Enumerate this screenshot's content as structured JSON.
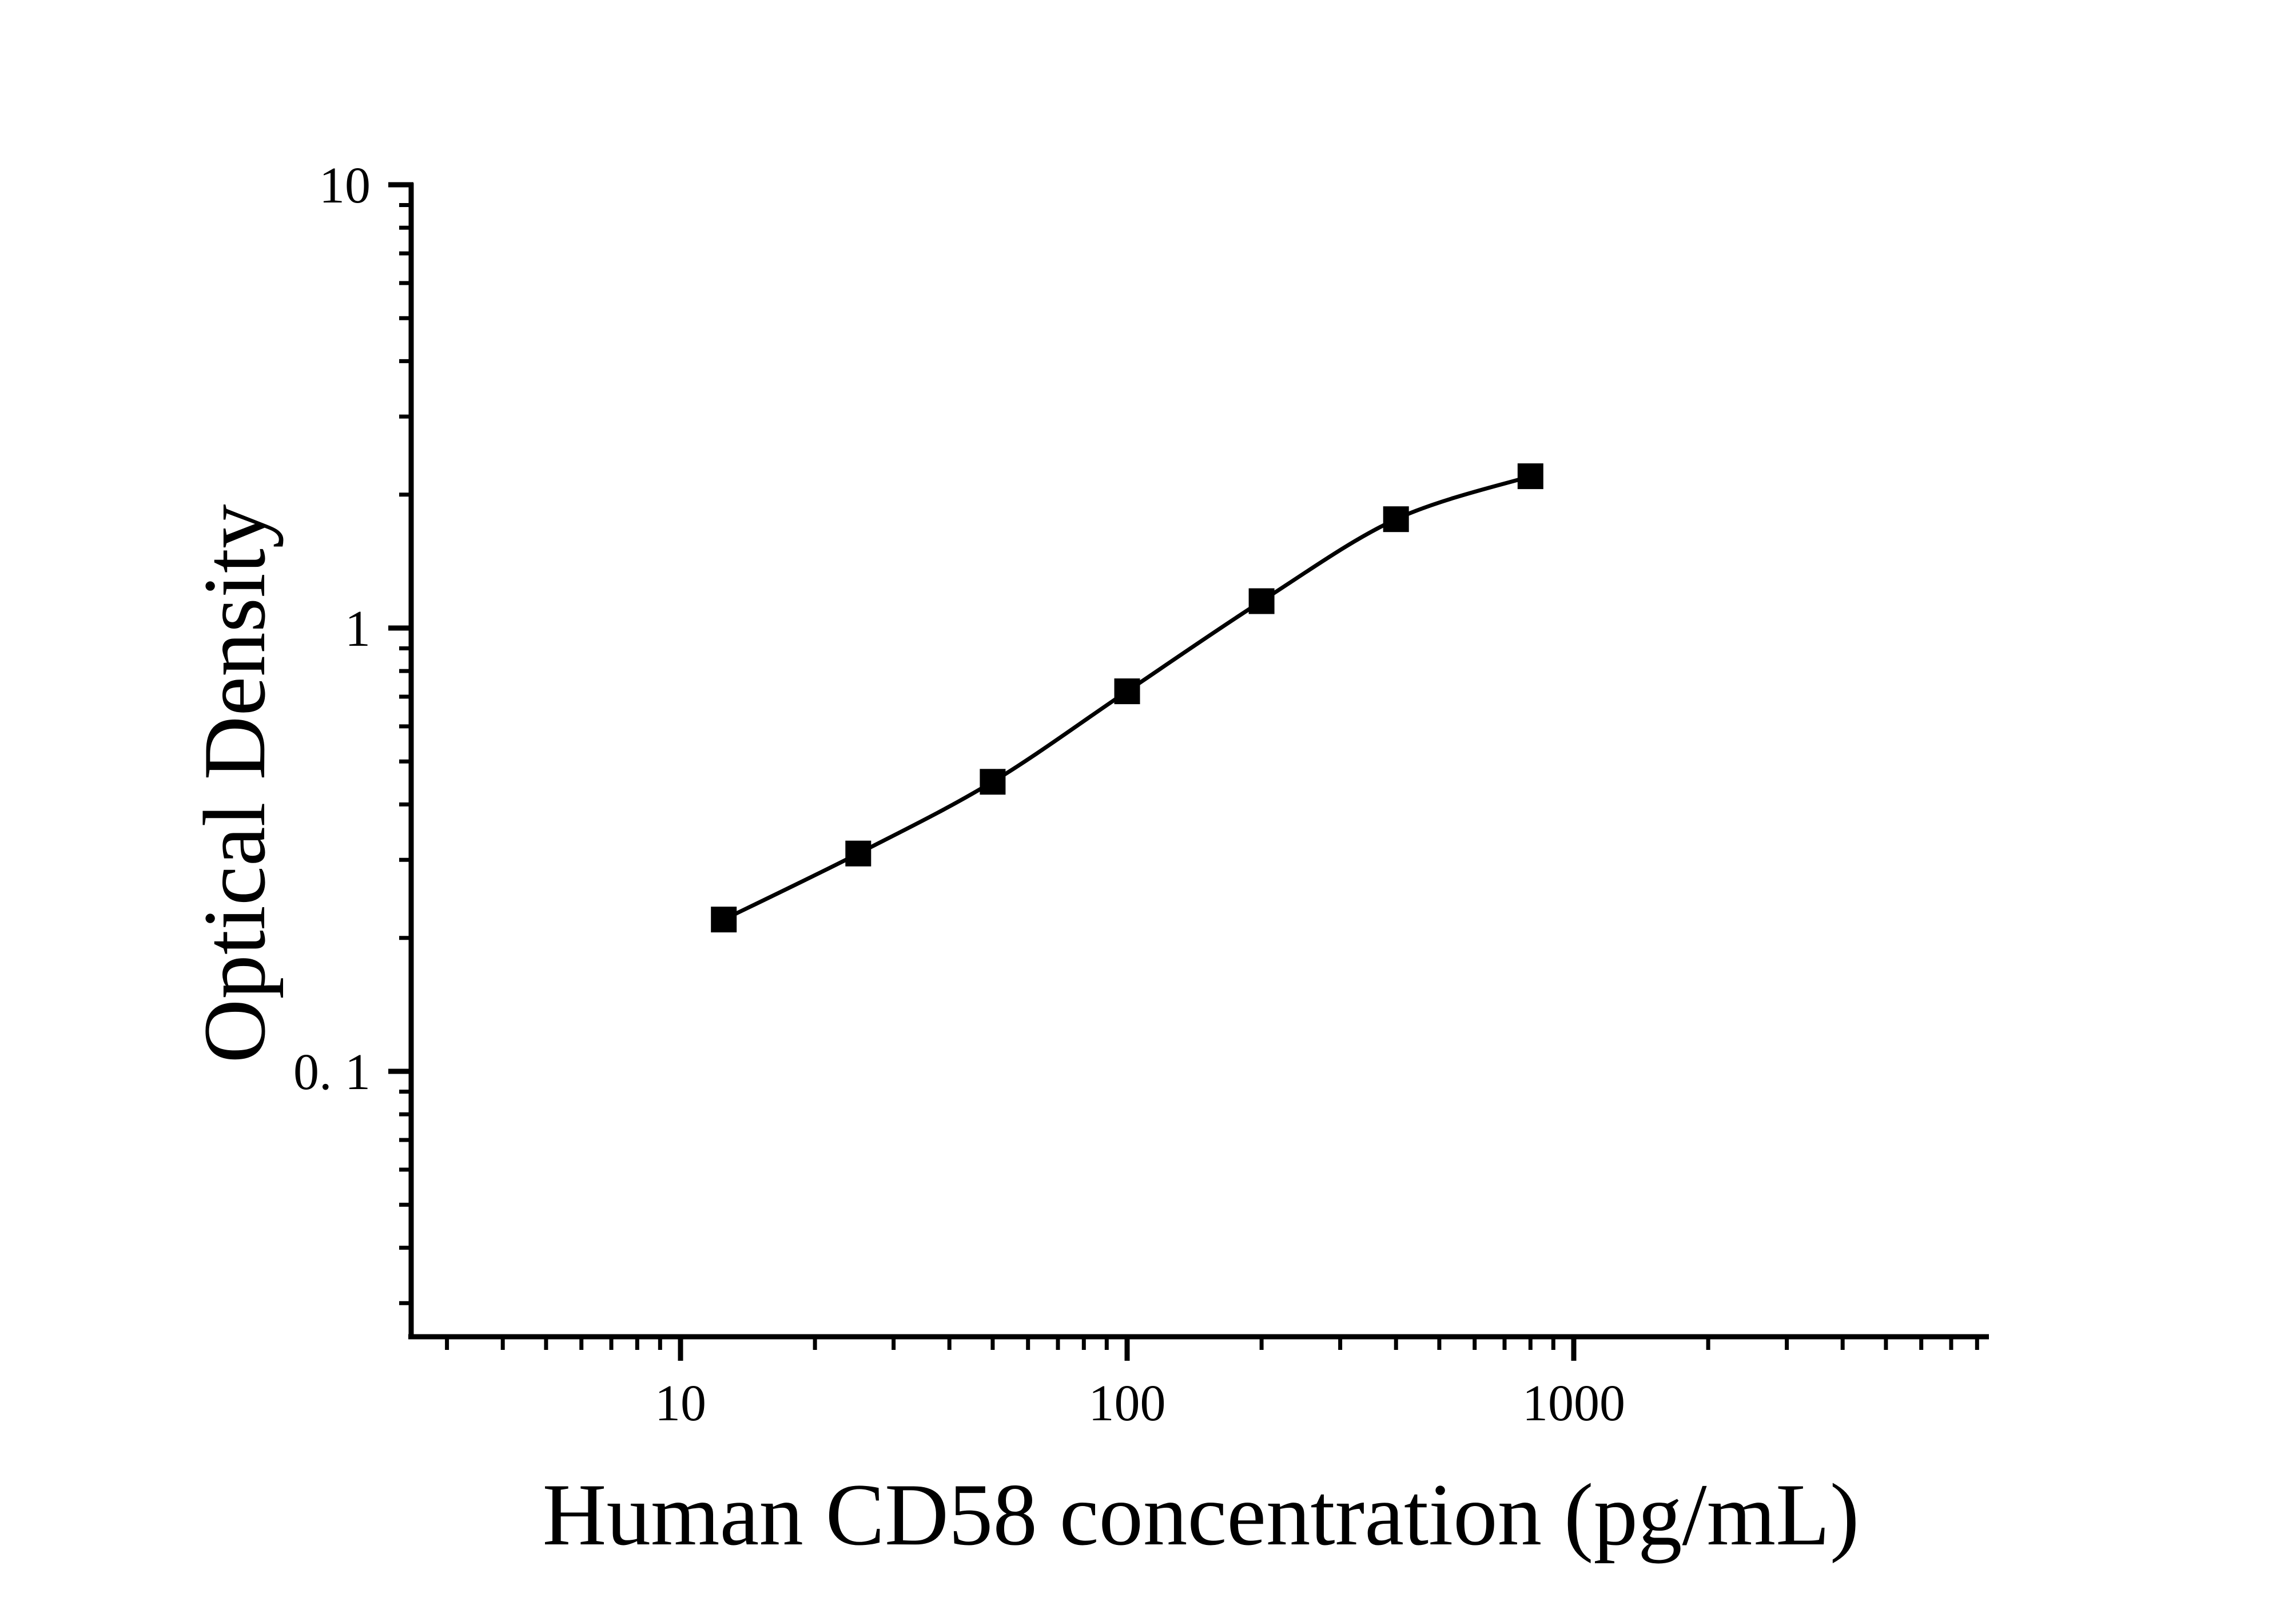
{
  "chart_data": {
    "type": "scatter",
    "subtype": "elisa-standard-curve-with-fitted-line",
    "title": "",
    "xlabel": "Human CD58 concentration (pg/mL)",
    "ylabel": "Optical Density",
    "x_scale": "log",
    "y_scale": "log",
    "xlim": [
      2.5,
      8500
    ],
    "ylim": [
      0.025,
      10
    ],
    "grid": false,
    "legend": false,
    "marker": "filled-square",
    "colors": {
      "marker": "#000000",
      "line": "#000000",
      "axis": "#000000",
      "text": "#000000",
      "background": "#ffffff"
    },
    "x": [
      12.5,
      25,
      50,
      100,
      200,
      400,
      800
    ],
    "y": [
      0.22,
      0.31,
      0.45,
      0.72,
      1.15,
      1.76,
      2.2
    ],
    "x_ticks": [
      {
        "value": 10,
        "label": "10"
      },
      {
        "value": 100,
        "label": "100"
      },
      {
        "value": 1000,
        "label": "1000"
      }
    ],
    "y_ticks": [
      {
        "value": 10,
        "label": "10"
      },
      {
        "value": 1,
        "label": "1"
      },
      {
        "value": 0.1,
        "label": "0. 1"
      }
    ],
    "x_minor_ticks": [
      3,
      4,
      5,
      6,
      7,
      8,
      9,
      20,
      30,
      40,
      50,
      60,
      70,
      80,
      90,
      200,
      300,
      400,
      500,
      600,
      700,
      800,
      900,
      2000,
      3000,
      4000,
      5000,
      6000,
      7000,
      8000
    ],
    "y_minor_ticks": [
      9,
      8,
      7,
      6,
      5,
      4,
      3,
      2,
      0.9,
      0.8,
      0.7,
      0.6,
      0.5,
      0.4,
      0.3,
      0.2,
      0.09,
      0.08,
      0.07,
      0.06,
      0.05,
      0.04,
      0.03
    ]
  }
}
